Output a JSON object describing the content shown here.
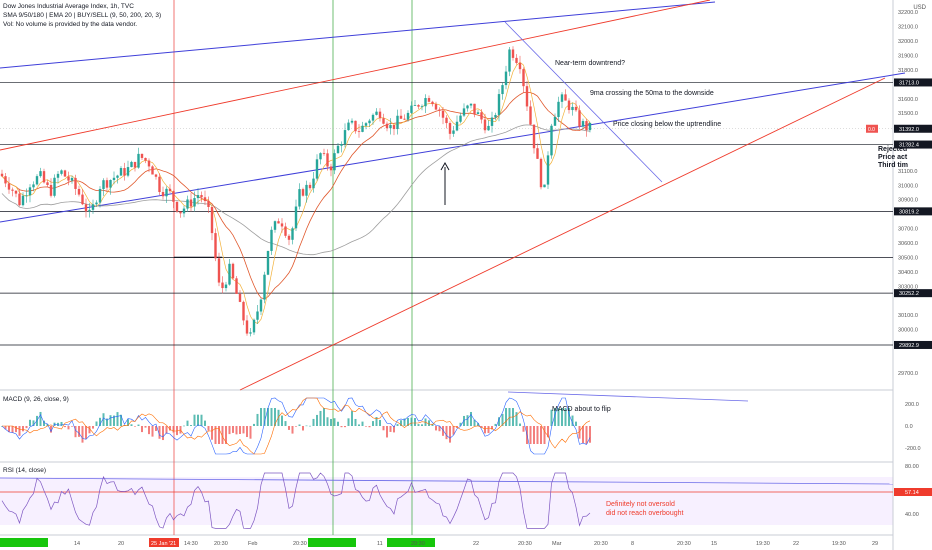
{
  "header": {
    "title": "Dow Jones Industrial Average Index, 1h, TVC",
    "indicators": "SMA 9/50/180 | EMA 20 | BUY/SELL (9, 50, 200, 20, 3)",
    "volume_note": "Vol: No volume is provided by the data vendor."
  },
  "currency": "USD",
  "annotations": {
    "near_term": "Near-term downtrend?",
    "ma_cross": "9ma crossing the 50ma to the downside",
    "price_closing": "Price closing below the uptrendline",
    "macd_flip": "MACD about to flip",
    "rsi_note_1": "Definitely not oversold",
    "rsi_note_2": "did not reach overbought",
    "partial_1": "Rejected",
    "partial_2": "Price act",
    "partial_3": "Third tim"
  },
  "panels": {
    "macd_title": "MACD (9, 26, close, 9)",
    "rsi_title": "RSI (14, close)"
  },
  "chart_data": {
    "type": "candlestick",
    "price_axis": {
      "ticks": [
        "32200.0",
        "32100.0",
        "32000.0",
        "31900.0",
        "31800.0",
        "31600.0",
        "31500.0",
        "31400.0",
        "31100.0",
        "31000.0",
        "30900.0",
        "30700.0",
        "30600.0",
        "30500.0",
        "30400.0",
        "30300.0",
        "30100.0",
        "30000.0",
        "29900.0",
        "29700.0"
      ],
      "ylim": [
        29650,
        32250
      ]
    },
    "level_tags": [
      "31713.0",
      "31392.0",
      "31282.4",
      "30819.2",
      "30252.2",
      "29892.9"
    ],
    "current_price_badge": "0.0",
    "date_ticks": [
      "14",
      "20",
      "25 Jan '21",
      "14:30",
      "20:30",
      "Feb",
      "20:30",
      "11",
      "20:30",
      "22",
      "20:30",
      "Mar",
      "20:30",
      "8",
      "20:30",
      "15",
      "19:30",
      "22",
      "19:30",
      "29"
    ],
    "close_path": [
      {
        "t": 0,
        "v": 31080
      },
      {
        "t": 10,
        "v": 31000
      },
      {
        "t": 20,
        "v": 30880
      },
      {
        "t": 30,
        "v": 31020
      },
      {
        "t": 40,
        "v": 31060
      },
      {
        "t": 50,
        "v": 30950
      },
      {
        "t": 60,
        "v": 31100
      },
      {
        "t": 70,
        "v": 31030
      },
      {
        "t": 80,
        "v": 30930
      },
      {
        "t": 90,
        "v": 30780
      },
      {
        "t": 100,
        "v": 31000
      },
      {
        "t": 110,
        "v": 31040
      },
      {
        "t": 120,
        "v": 31080
      },
      {
        "t": 130,
        "v": 31120
      },
      {
        "t": 140,
        "v": 31200
      },
      {
        "t": 150,
        "v": 31150
      },
      {
        "t": 160,
        "v": 30980
      },
      {
        "t": 170,
        "v": 30940
      },
      {
        "t": 180,
        "v": 30820
      },
      {
        "t": 190,
        "v": 30880
      },
      {
        "t": 200,
        "v": 30950
      },
      {
        "t": 210,
        "v": 30780
      },
      {
        "t": 220,
        "v": 30250
      },
      {
        "t": 230,
        "v": 30420
      },
      {
        "t": 240,
        "v": 30150
      },
      {
        "t": 250,
        "v": 29930
      },
      {
        "t": 260,
        "v": 30200
      },
      {
        "t": 270,
        "v": 30650
      },
      {
        "t": 280,
        "v": 30780
      },
      {
        "t": 290,
        "v": 30620
      },
      {
        "t": 300,
        "v": 30950
      },
      {
        "t": 310,
        "v": 31000
      },
      {
        "t": 320,
        "v": 31220
      },
      {
        "t": 330,
        "v": 31120
      },
      {
        "t": 340,
        "v": 31300
      },
      {
        "t": 350,
        "v": 31420
      },
      {
        "t": 360,
        "v": 31380
      },
      {
        "t": 370,
        "v": 31470
      },
      {
        "t": 380,
        "v": 31510
      },
      {
        "t": 390,
        "v": 31400
      },
      {
        "t": 400,
        "v": 31450
      },
      {
        "t": 410,
        "v": 31500
      },
      {
        "t": 420,
        "v": 31580
      },
      {
        "t": 430,
        "v": 31620
      },
      {
        "t": 440,
        "v": 31520
      },
      {
        "t": 450,
        "v": 31360
      },
      {
        "t": 460,
        "v": 31480
      },
      {
        "t": 470,
        "v": 31550
      },
      {
        "t": 480,
        "v": 31470
      },
      {
        "t": 490,
        "v": 31380
      },
      {
        "t": 500,
        "v": 31620
      },
      {
        "t": 510,
        "v": 31950
      },
      {
        "t": 520,
        "v": 31850
      },
      {
        "t": 530,
        "v": 31450
      },
      {
        "t": 540,
        "v": 31050
      },
      {
        "t": 545,
        "v": 30950
      },
      {
        "t": 550,
        "v": 31420
      },
      {
        "t": 560,
        "v": 31600
      },
      {
        "t": 570,
        "v": 31550
      },
      {
        "t": 580,
        "v": 31430
      },
      {
        "t": 590,
        "v": 31392
      }
    ],
    "macd_axis": {
      "ticks": [
        "200.0",
        "0.0",
        "-200.0"
      ]
    },
    "rsi_axis": {
      "ticks": [
        "80.00",
        "57.14",
        "40.00"
      ],
      "current_value": "57.14"
    }
  }
}
